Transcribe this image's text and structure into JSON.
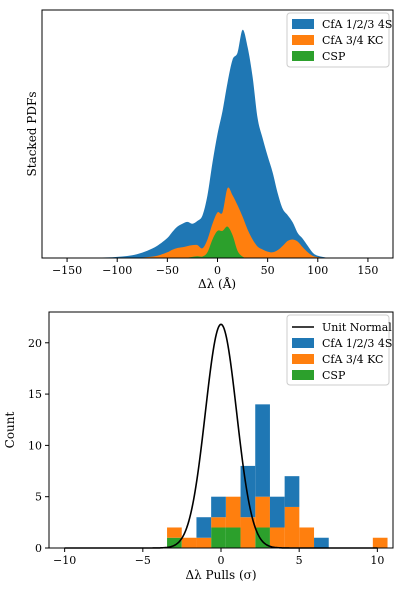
{
  "colors": {
    "CfA 1/2/3 4S": "#1f77b4",
    "CfA 3/4 KC": "#ff7f0e",
    "CSP": "#2ca02c",
    "Unit Normal": "#000000"
  },
  "chart_data": [
    {
      "type": "area",
      "stacked": true,
      "xlabel": "Δλ (Å)",
      "ylabel": "Stacked PDFs",
      "xlim": [
        -175,
        175
      ],
      "xticks": [
        -150,
        -100,
        -50,
        0,
        50,
        100,
        150
      ],
      "yticks": [],
      "legend_position": "top-right",
      "grid": false,
      "x": [
        -150,
        -140,
        -130,
        -120,
        -110,
        -100,
        -90,
        -80,
        -70,
        -60,
        -50,
        -45,
        -40,
        -35,
        -30,
        -25,
        -20,
        -15,
        -10,
        -5,
        0,
        5,
        10,
        15,
        20,
        25,
        30,
        35,
        40,
        45,
        50,
        55,
        60,
        65,
        70,
        75,
        80,
        85,
        90,
        95,
        100,
        110,
        120,
        130,
        140,
        150
      ],
      "series": [
        {
          "name": "CSP",
          "values": [
            0,
            0,
            0,
            0,
            0,
            0,
            0,
            0,
            0,
            0,
            0,
            0,
            0,
            0,
            0.003,
            0.008,
            0.012,
            0.01,
            0.04,
            0.13,
            0.19,
            0.19,
            0.22,
            0.16,
            0.05,
            0.01,
            0,
            0,
            0,
            0,
            0,
            0,
            0,
            0,
            0,
            0,
            0,
            0,
            0,
            0,
            0,
            0,
            0,
            0,
            0,
            0
          ]
        },
        {
          "name": "CfA 3/4 KC",
          "values": [
            0,
            0,
            0,
            0,
            0,
            0,
            0,
            0.002,
            0.006,
            0.016,
            0.04,
            0.058,
            0.07,
            0.075,
            0.08,
            0.082,
            0.078,
            0.058,
            0.09,
            0.11,
            0.13,
            0.13,
            0.27,
            0.28,
            0.32,
            0.28,
            0.2,
            0.13,
            0.08,
            0.06,
            0.045,
            0.04,
            0.055,
            0.085,
            0.12,
            0.13,
            0.115,
            0.075,
            0.04,
            0.015,
            0.006,
            0,
            0,
            0,
            0,
            0
          ]
        },
        {
          "name": "CfA 1/2/3 4S",
          "values": [
            0,
            0,
            0.001,
            0.002,
            0.004,
            0.008,
            0.014,
            0.025,
            0.045,
            0.07,
            0.1,
            0.125,
            0.15,
            0.165,
            0.17,
            0.15,
            0.17,
            0.23,
            0.31,
            0.43,
            0.55,
            0.71,
            0.74,
            0.95,
            1.07,
            1.31,
            1.28,
            1.14,
            0.9,
            0.78,
            0.67,
            0.56,
            0.4,
            0.26,
            0.18,
            0.12,
            0.06,
            0.06,
            0.045,
            0.022,
            0.01,
            0.002,
            0.001,
            0,
            0,
            0
          ]
        }
      ]
    },
    {
      "type": "bar",
      "stacked": true,
      "xlabel": "Δλ Pulls (σ)",
      "ylabel": "Count",
      "xlim": [
        -11,
        11
      ],
      "ylim": [
        0,
        23
      ],
      "xticks": [
        -10,
        -5,
        0,
        5,
        10
      ],
      "yticks": [
        0,
        5,
        10,
        15,
        20
      ],
      "legend_position": "top-right",
      "grid": false,
      "bin_edges": [
        -3.45,
        -2.51,
        -1.57,
        -0.63,
        0.31,
        1.25,
        2.19,
        3.13,
        4.07,
        5.01,
        5.95,
        6.89,
        7.83,
        8.77,
        9.71,
        10.65
      ],
      "series": [
        {
          "name": "CSP",
          "values": [
            1,
            0,
            0,
            2,
            2,
            0,
            2,
            0,
            0,
            0,
            0,
            0,
            0,
            0,
            0
          ]
        },
        {
          "name": "CfA 3/4 KC",
          "values": [
            1,
            1,
            1,
            1,
            3,
            3,
            3,
            2,
            4,
            2,
            0,
            0,
            0,
            0,
            1
          ]
        },
        {
          "name": "CfA 1/2/3 4S",
          "values": [
            0,
            0,
            2,
            2,
            0,
            5,
            9,
            3,
            3,
            0,
            1,
            0,
            0,
            0,
            0
          ]
        }
      ],
      "unit_normal": {
        "name": "Unit Normal",
        "peak": 21.8,
        "mean": 0,
        "sigma": 1
      }
    }
  ]
}
